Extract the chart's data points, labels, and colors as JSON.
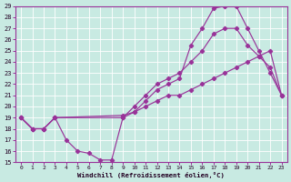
{
  "bg_color": "#c8eae2",
  "grid_color": "#b0d8d0",
  "line_color": "#993399",
  "xlabel": "Windchill (Refroidissement éolien,°C)",
  "xlim": [
    -0.5,
    23.5
  ],
  "ylim": [
    15,
    29
  ],
  "xticks": [
    0,
    1,
    2,
    3,
    4,
    5,
    6,
    7,
    8,
    9,
    10,
    11,
    12,
    13,
    14,
    15,
    16,
    17,
    18,
    19,
    20,
    21,
    22,
    23
  ],
  "yticks": [
    15,
    16,
    17,
    18,
    19,
    20,
    21,
    22,
    23,
    24,
    25,
    26,
    27,
    28,
    29
  ],
  "curve1_x": [
    0,
    1,
    2,
    3,
    4,
    5,
    6,
    7,
    8,
    9,
    10,
    11,
    12,
    13,
    14,
    15,
    16,
    17,
    18,
    19,
    20,
    21,
    22,
    23
  ],
  "curve1_y": [
    19,
    18,
    18,
    19,
    17,
    16,
    15.8,
    15.2,
    15.2,
    19,
    19.5,
    20.5,
    21.5,
    22,
    22.5,
    25.5,
    27,
    28.8,
    29,
    29,
    27,
    25,
    23,
    21
  ],
  "curve2_x": [
    0,
    1,
    2,
    3,
    9,
    10,
    11,
    12,
    13,
    14,
    15,
    16,
    17,
    18,
    19,
    20,
    21,
    22,
    23
  ],
  "curve2_y": [
    19,
    18,
    18,
    19,
    19,
    20,
    21,
    22,
    22.5,
    23,
    24,
    25,
    26.5,
    27,
    27,
    25.5,
    24.5,
    23.5,
    21
  ],
  "curve3_x": [
    0,
    1,
    2,
    3,
    9,
    10,
    11,
    12,
    13,
    14,
    15,
    16,
    17,
    18,
    19,
    20,
    21,
    22,
    23
  ],
  "curve3_y": [
    19,
    18,
    18,
    19,
    19.2,
    19.5,
    20,
    20.5,
    21,
    21,
    21.5,
    22,
    22.5,
    23,
    23.5,
    24,
    24.5,
    25,
    21
  ]
}
